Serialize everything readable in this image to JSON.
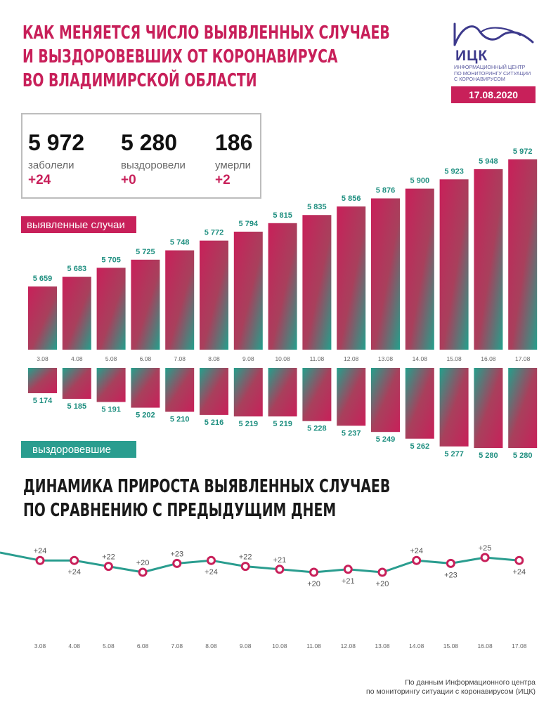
{
  "title": {
    "line1": "КАК МЕНЯЕТСЯ ЧИСЛО ВЫЯВЛЕННЫХ СЛУЧАЕВ",
    "line2": "И ВЫЗДОРОВЕВШИХ ОТ КОРОНАВИРУСА",
    "line3": "ВО ВЛАДИМИРСКОЙ ОБЛАСТИ"
  },
  "logo": {
    "abbr": "ИЦК",
    "sub1": "Информационный центр",
    "sub2": "по мониторингу ситуации",
    "sub3": "с коронавирусом",
    "icon": "chart-curve-logo-icon"
  },
  "date": "17.08.2020",
  "stats": {
    "cases": {
      "value": "5 972",
      "label": "заболели",
      "delta": "+24"
    },
    "recovered": {
      "value": "5 280",
      "label": "выздоровели",
      "delta": "+0"
    },
    "deaths": {
      "value": "186",
      "label": "умерли",
      "delta": "+2"
    }
  },
  "labels": {
    "cases": "выявленные случаи",
    "recovered": "выздоровевшие"
  },
  "colors": {
    "brand": "#c8205a",
    "teal": "#2a9d8f",
    "logo": "#3d3a8c"
  },
  "chart_data": [
    {
      "type": "bar",
      "categories": [
        "3.08",
        "4.08",
        "5.08",
        "6.08",
        "7.08",
        "8.08",
        "9.08",
        "10.08",
        "11.08",
        "12.08",
        "13.08",
        "14.08",
        "15.08",
        "16.08",
        "17.08"
      ],
      "values": [
        5659,
        5683,
        5705,
        5725,
        5748,
        5772,
        5794,
        5815,
        5835,
        5856,
        5876,
        5900,
        5923,
        5948,
        5972
      ],
      "value_labels": [
        "5 659",
        "5 683",
        "5 705",
        "5 725",
        "5 748",
        "5 772",
        "5 794",
        "5 815",
        "5 835",
        "5 856",
        "5 876",
        "5 900",
        "5 923",
        "5 948",
        "5 972"
      ],
      "series_name": "выявленные случаи",
      "direction": "up"
    },
    {
      "type": "bar",
      "categories": [
        "3.08",
        "4.08",
        "5.08",
        "6.08",
        "7.08",
        "8.08",
        "9.08",
        "10.08",
        "11.08",
        "12.08",
        "13.08",
        "14.08",
        "15.08",
        "16.08",
        "17.08"
      ],
      "values": [
        5174,
        5185,
        5191,
        5202,
        5210,
        5216,
        5219,
        5219,
        5228,
        5237,
        5249,
        5262,
        5277,
        5280,
        5280
      ],
      "value_labels": [
        "5 174",
        "5 185",
        "5 191",
        "5 202",
        "5 210",
        "5 216",
        "5 219",
        "5 219",
        "5 228",
        "5 237",
        "5 249",
        "5 262",
        "5 277",
        "5 280",
        "5 280"
      ],
      "series_name": "выздоровевшие",
      "direction": "down"
    },
    {
      "type": "line",
      "title_line1": "ДИНАМИКА ПРИРОСТА ВЫЯВЛЕННЫХ СЛУЧАЕВ",
      "title_line2": "ПО СРАВНЕНИЮ С ПРЕДЫДУЩИМ ДНЕМ",
      "categories": [
        "3.08",
        "4.08",
        "5.08",
        "6.08",
        "7.08",
        "8.08",
        "9.08",
        "10.08",
        "11.08",
        "12.08",
        "13.08",
        "14.08",
        "15.08",
        "16.08",
        "17.08"
      ],
      "values": [
        24,
        24,
        22,
        20,
        23,
        24,
        22,
        21,
        20,
        21,
        20,
        24,
        23,
        25,
        24
      ],
      "value_labels": [
        "+24",
        "+24",
        "+22",
        "+20",
        "+23",
        "+24",
        "+22",
        "+21",
        "+20",
        "+21",
        "+20",
        "+24",
        "+23",
        "+25",
        "+24"
      ],
      "label_position": [
        "above",
        "below",
        "above",
        "above",
        "above",
        "below",
        "above",
        "above",
        "below",
        "below",
        "below",
        "above",
        "below",
        "above",
        "below"
      ]
    }
  ],
  "source": {
    "line1": "По данным Информационного центра",
    "line2": "по мониторингу ситуации с коронавирусом (ИЦК)"
  }
}
